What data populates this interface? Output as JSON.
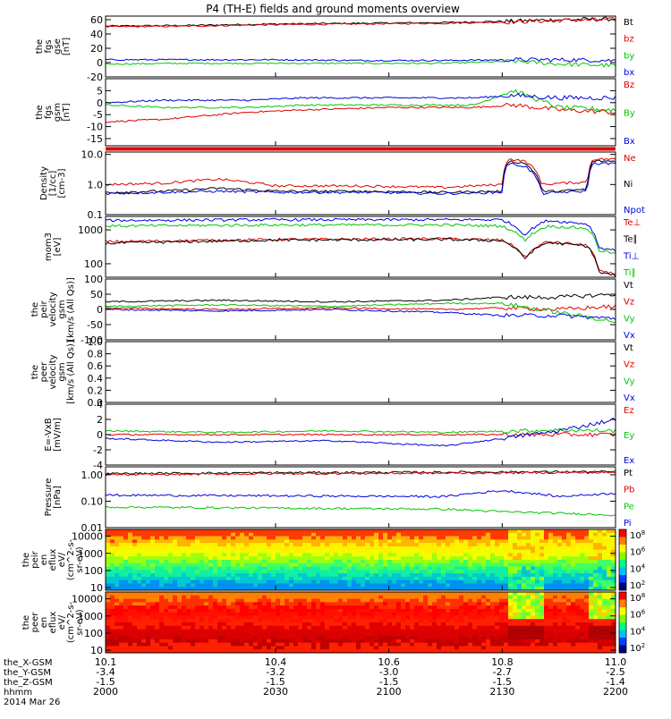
{
  "title": "P4 (TH-E) fields and ground moments overview",
  "colors": {
    "black": "#000000",
    "red": "#e00000",
    "green": "#00c800",
    "blue": "#0000e0"
  },
  "chart_data": [
    {
      "type": "line",
      "panel": "fgs_gse",
      "ylabel": [
        "the",
        "fgs",
        "gse",
        "[nT]"
      ],
      "ylim": [
        -20,
        65
      ],
      "yticks": [
        {
          "v": 60,
          "t": "60"
        },
        {
          "v": 40,
          "t": "40"
        },
        {
          "v": 20,
          "t": "20"
        },
        {
          "v": 0,
          "t": "0"
        },
        {
          "v": -20,
          "t": "-20"
        }
      ],
      "series": [
        {
          "name": "Bt",
          "color": "black",
          "x": [
            10.1,
            10.25,
            10.4,
            10.55,
            10.7,
            10.82,
            10.9,
            11.0
          ],
          "y": [
            51,
            52,
            54,
            55,
            56,
            58,
            60,
            61
          ]
        },
        {
          "name": "bz",
          "color": "red",
          "x": [
            10.1,
            10.25,
            10.4,
            10.55,
            10.7,
            10.82,
            10.9,
            11.0
          ],
          "y": [
            50,
            51,
            53,
            54,
            55,
            57,
            59,
            60
          ]
        },
        {
          "name": "by",
          "color": "green",
          "x": [
            10.1,
            10.25,
            10.4,
            10.55,
            10.7,
            10.82,
            10.9,
            11.0
          ],
          "y": [
            -2,
            -1,
            -1,
            -1,
            -1,
            2,
            -2,
            -4
          ]
        },
        {
          "name": "bx",
          "color": "blue",
          "x": [
            10.1,
            10.25,
            10.4,
            10.55,
            10.7,
            10.82,
            10.9,
            11.0
          ],
          "y": [
            4,
            4,
            4,
            3,
            3,
            4,
            4,
            3
          ]
        }
      ]
    },
    {
      "type": "line",
      "panel": "fgs_gsm",
      "ylabel": [
        "the",
        "fgs",
        "gsm",
        "[nT]"
      ],
      "ylim": [
        -18,
        10
      ],
      "yticks": [
        {
          "v": 5,
          "t": "5"
        },
        {
          "v": 0,
          "t": "0"
        },
        {
          "v": -5,
          "t": "-5"
        },
        {
          "v": -10,
          "t": "-10"
        },
        {
          "v": -15,
          "t": "-15"
        }
      ],
      "series": [
        {
          "name": "Bz",
          "color": "red",
          "x": [
            10.1,
            10.2,
            10.35,
            10.45,
            10.6,
            10.75,
            10.82,
            10.9,
            11.0
          ],
          "y": [
            -8,
            -7,
            -4,
            -3,
            -2,
            -2,
            -1,
            -3,
            -4
          ]
        },
        {
          "name": "By",
          "color": "green",
          "x": [
            10.1,
            10.2,
            10.35,
            10.45,
            10.6,
            10.75,
            10.82,
            10.9,
            11.0
          ],
          "y": [
            -1,
            -2,
            -2,
            -1,
            -1,
            -1,
            5,
            -2,
            -3
          ]
        },
        {
          "name": "Bx",
          "color": "blue",
          "x": [
            10.1,
            10.2,
            10.35,
            10.45,
            10.6,
            10.75,
            10.82,
            10.9,
            11.0
          ],
          "y": [
            0,
            1,
            1,
            2,
            2,
            2,
            3,
            2,
            2
          ]
        }
      ]
    },
    {
      "type": "line",
      "panel": "density",
      "yscale": "log",
      "ylabel": [
        "Density",
        "[1/cc]",
        "[cm-3]"
      ],
      "ylim": [
        0.1,
        12
      ],
      "yticks": [
        {
          "v": 10,
          "t": "10.0"
        },
        {
          "v": 1,
          "t": "1.0"
        },
        {
          "v": 0.1,
          "t": "0.1"
        }
      ],
      "series": [
        {
          "name": "Ne",
          "color": "red",
          "x": [
            10.1,
            10.2,
            10.3,
            10.4,
            10.55,
            10.7,
            10.8,
            10.81,
            10.84,
            10.87,
            10.9,
            10.95,
            10.96,
            11.0
          ],
          "y": [
            1.0,
            1.1,
            1.5,
            0.9,
            0.9,
            0.8,
            1.0,
            7,
            6,
            1.0,
            1.1,
            1.2,
            7,
            7
          ]
        },
        {
          "name": "Ni",
          "color": "black",
          "x": [
            10.1,
            10.2,
            10.3,
            10.4,
            10.55,
            10.7,
            10.8,
            10.81,
            10.84,
            10.87,
            10.9,
            10.95,
            10.96,
            11.0
          ],
          "y": [
            0.55,
            0.6,
            0.75,
            0.6,
            0.6,
            0.55,
            0.6,
            6,
            5,
            0.6,
            0.6,
            0.7,
            6,
            6
          ]
        },
        {
          "name": "Npot",
          "color": "blue",
          "x": [
            10.1,
            10.2,
            10.3,
            10.4,
            10.55,
            10.7,
            10.8,
            10.81,
            10.84,
            10.87,
            10.9,
            10.95,
            10.96,
            11.0
          ],
          "y": [
            0.5,
            0.55,
            0.6,
            0.55,
            0.55,
            0.5,
            0.55,
            5,
            4,
            0.5,
            0.55,
            0.6,
            5,
            5
          ]
        }
      ]
    },
    {
      "type": "line",
      "panel": "temperature",
      "yscale": "log",
      "ylabel": [
        "mom3",
        "[eV]"
      ],
      "ylim": [
        40,
        2500
      ],
      "yticks": [
        {
          "v": 1000,
          "t": "1000"
        },
        {
          "v": 100,
          "t": "100"
        }
      ],
      "series": [
        {
          "name": "Te⊥",
          "color": "red",
          "x": [
            10.1,
            10.4,
            10.7,
            10.8,
            10.84,
            10.88,
            10.95,
            10.97,
            11.0
          ],
          "y": [
            450,
            520,
            550,
            500,
            150,
            450,
            350,
            60,
            50
          ]
        },
        {
          "name": "Te∥",
          "color": "black",
          "x": [
            10.1,
            10.4,
            10.7,
            10.8,
            10.84,
            10.88,
            10.95,
            10.97,
            11.0
          ],
          "y": [
            400,
            500,
            520,
            480,
            140,
            420,
            330,
            55,
            45
          ]
        },
        {
          "name": "Ti⊥",
          "color": "blue",
          "x": [
            10.1,
            10.4,
            10.7,
            10.8,
            10.84,
            10.88,
            10.95,
            10.97,
            11.0
          ],
          "y": [
            1900,
            2000,
            2000,
            2000,
            700,
            1900,
            1500,
            300,
            250
          ]
        },
        {
          "name": "Ti∥",
          "color": "green",
          "x": [
            10.1,
            10.4,
            10.7,
            10.8,
            10.84,
            10.88,
            10.95,
            10.97,
            11.0
          ],
          "y": [
            1300,
            1400,
            1400,
            1300,
            500,
            1300,
            1100,
            250,
            200
          ]
        }
      ]
    },
    {
      "type": "line",
      "panel": "peir_velocity",
      "ylabel": [
        "the",
        "peir",
        "velocity",
        "gsm",
        "[km/s (All Qs)]"
      ],
      "ylim": [
        -100,
        100
      ],
      "yticks": [
        {
          "v": 100,
          "t": "100"
        },
        {
          "v": 50,
          "t": "50"
        },
        {
          "v": 0,
          "t": "0"
        },
        {
          "v": -50,
          "t": "-50"
        },
        {
          "v": -100,
          "t": "-100"
        }
      ],
      "series": [
        {
          "name": "Vt",
          "color": "black",
          "x": [
            10.1,
            10.3,
            10.5,
            10.7,
            10.8,
            10.9,
            11.0
          ],
          "y": [
            25,
            30,
            25,
            30,
            40,
            40,
            50
          ]
        },
        {
          "name": "Vz",
          "color": "red",
          "x": [
            10.1,
            10.3,
            10.5,
            10.7,
            10.8,
            10.9,
            11.0
          ],
          "y": [
            5,
            0,
            5,
            0,
            5,
            0,
            10
          ]
        },
        {
          "name": "Vy",
          "color": "green",
          "x": [
            10.1,
            10.3,
            10.5,
            10.7,
            10.8,
            10.9,
            11.0
          ],
          "y": [
            10,
            15,
            10,
            20,
            20,
            -10,
            -40
          ]
        },
        {
          "name": "Vx",
          "color": "blue",
          "x": [
            10.1,
            10.3,
            10.5,
            10.7,
            10.8,
            10.9,
            11.0
          ],
          "y": [
            0,
            -5,
            0,
            -10,
            -20,
            -20,
            -30
          ]
        }
      ]
    },
    {
      "type": "line",
      "panel": "peer_velocity",
      "ylabel": [
        "the",
        "peer",
        "velocity",
        "gsm",
        "[km/s (All Qs)]"
      ],
      "ylim": [
        0,
        1
      ],
      "yticks": [
        {
          "v": 1.0,
          "t": "1.0"
        },
        {
          "v": 0.8,
          "t": "0.8"
        },
        {
          "v": 0.6,
          "t": "0.6"
        },
        {
          "v": 0.4,
          "t": "0.4"
        },
        {
          "v": 0.2,
          "t": "0.2"
        },
        {
          "v": 0,
          "t": "0.0"
        }
      ],
      "series": [
        {
          "name": "Vt",
          "color": "black",
          "x": [],
          "y": []
        },
        {
          "name": "Vz",
          "color": "red",
          "x": [],
          "y": []
        },
        {
          "name": "Vy",
          "color": "green",
          "x": [],
          "y": []
        },
        {
          "name": "Vx",
          "color": "blue",
          "x": [],
          "y": []
        }
      ]
    },
    {
      "type": "line",
      "panel": "efield",
      "ylabel": [
        "E=-VxB",
        "[mV/m]"
      ],
      "ylim": [
        -4,
        4
      ],
      "yticks": [
        {
          "v": 4,
          "t": "4"
        },
        {
          "v": 2,
          "t": "2"
        },
        {
          "v": 0,
          "t": "0"
        },
        {
          "v": -2,
          "t": "-2"
        },
        {
          "v": -4,
          "t": "-4"
        }
      ],
      "series": [
        {
          "name": "Ez",
          "color": "red",
          "x": [
            10.1,
            10.3,
            10.5,
            10.7,
            10.9,
            11.0
          ],
          "y": [
            0,
            0,
            0,
            0,
            0,
            0
          ]
        },
        {
          "name": "Ey",
          "color": "green",
          "x": [
            10.1,
            10.3,
            10.5,
            10.7,
            10.9,
            11.0
          ],
          "y": [
            0.5,
            0.3,
            0.5,
            0.3,
            0.6,
            0.5
          ]
        },
        {
          "name": "Ex",
          "color": "blue",
          "x": [
            10.1,
            10.3,
            10.5,
            10.7,
            10.9,
            11.0
          ],
          "y": [
            -0.5,
            -1,
            -0.8,
            -1.5,
            0.5,
            2
          ]
        }
      ]
    },
    {
      "type": "line",
      "panel": "pressure",
      "yscale": "log",
      "ylabel": [
        "Pressure",
        "[nPa]"
      ],
      "ylim": [
        0.01,
        2
      ],
      "yticks": [
        {
          "v": 1,
          "t": "1.00"
        },
        {
          "v": 0.1,
          "t": "0.10"
        },
        {
          "v": 0.01,
          "t": "0.01"
        }
      ],
      "series": [
        {
          "name": "Pt",
          "color": "black",
          "x": [
            10.1,
            10.4,
            10.7,
            10.9,
            11.0
          ],
          "y": [
            1.1,
            1.2,
            1.25,
            1.3,
            1.3
          ]
        },
        {
          "name": "Pb",
          "color": "red",
          "x": [
            10.1,
            10.4,
            10.7,
            10.9,
            11.0
          ],
          "y": [
            1.0,
            1.1,
            1.15,
            1.2,
            1.2
          ]
        },
        {
          "name": "Pe",
          "color": "green",
          "x": [
            10.1,
            10.4,
            10.7,
            10.8,
            10.9,
            11.0
          ],
          "y": [
            0.06,
            0.055,
            0.05,
            0.04,
            0.035,
            0.03
          ]
        },
        {
          "name": "Pi",
          "color": "blue",
          "x": [
            10.1,
            10.4,
            10.7,
            10.8,
            10.9,
            11.0
          ],
          "y": [
            0.17,
            0.16,
            0.15,
            0.25,
            0.15,
            0.2
          ]
        }
      ]
    },
    {
      "type": "heatmap",
      "panel": "peir_eflux",
      "yscale": "log",
      "ylabel": [
        "the",
        "peir",
        "en",
        "eflux",
        "eV/",
        "(cm^2-s-",
        "sr-eV)"
      ],
      "ylim": [
        7,
        25000
      ],
      "yticks": [
        {
          "v": 10000,
          "t": "10000"
        },
        {
          "v": 1000,
          "t": "1000"
        },
        {
          "v": 100,
          "t": "100"
        },
        {
          "v": 10,
          "t": "10"
        }
      ],
      "colorbar": {
        "ticks": [
          "10^8",
          "10^6",
          "10^4",
          "10^2"
        ]
      }
    },
    {
      "type": "heatmap",
      "panel": "peer_eflux",
      "yscale": "log",
      "ylabel": [
        "the",
        "peer",
        "en",
        "eflux",
        "eV/",
        "(cm^2-s-",
        "sr-eV)"
      ],
      "ylim": [
        7,
        25000
      ],
      "yticks": [
        {
          "v": 10000,
          "t": "10000"
        },
        {
          "v": 1000,
          "t": "1000"
        },
        {
          "v": 100,
          "t": "100"
        },
        {
          "v": 10,
          "t": "10"
        }
      ],
      "colorbar": {
        "ticks": [
          "10^8",
          "10^6",
          "10^4",
          "10^2"
        ]
      }
    }
  ],
  "xaxis": {
    "range": [
      10.1,
      11.0
    ],
    "row_labels": [
      "the_X-GSM",
      "the_Y-GSM",
      "the_Z-GSM",
      "hhmm",
      "2014 Mar 26"
    ],
    "ticks": [
      {
        "v": 10.1,
        "rows": [
          "10.1",
          "-3.4",
          "-1.5",
          "2000"
        ]
      },
      {
        "v": 10.4,
        "rows": [
          "10.4",
          "-3.2",
          "-1.5",
          "2030"
        ]
      },
      {
        "v": 10.6,
        "rows": [
          "10.6",
          "-3.0",
          "-1.5",
          "2100"
        ]
      },
      {
        "v": 10.8,
        "rows": [
          "10.8",
          "-2.7",
          "-1.5",
          "2130"
        ]
      },
      {
        "v": 11.0,
        "rows": [
          "11.0",
          "-2.5",
          "-1.4",
          "2200"
        ]
      }
    ]
  }
}
